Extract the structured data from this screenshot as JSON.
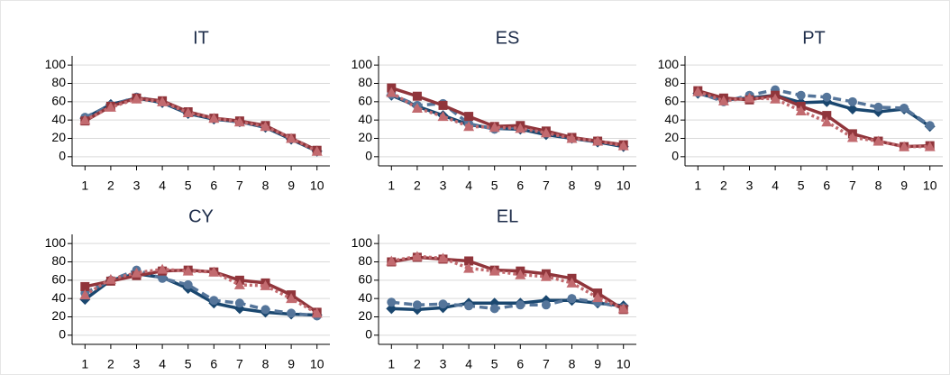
{
  "chart_data": [
    {
      "type": "line",
      "title": "IT",
      "x": [
        1,
        2,
        3,
        4,
        5,
        6,
        7,
        8,
        9,
        10
      ],
      "xlim": [
        0.5,
        10.5
      ],
      "xticks": [
        1,
        2,
        3,
        4,
        5,
        6,
        7,
        8,
        9,
        10
      ],
      "ylim": [
        -10,
        110
      ],
      "yticks": [
        0,
        20,
        40,
        60,
        80,
        100
      ],
      "grid": true,
      "series": [
        {
          "color": "#1a476f",
          "marker": "diamond",
          "dash": "solid",
          "values": [
            42,
            57,
            64,
            59,
            47,
            41,
            38,
            32,
            19,
            6
          ]
        },
        {
          "color": "#55759a",
          "marker": "circle",
          "dash": "dashed",
          "values": [
            43,
            56,
            65,
            60,
            48,
            42,
            38,
            33,
            20,
            7
          ]
        },
        {
          "color": "#90353b",
          "marker": "square",
          "dash": "solid",
          "values": [
            39,
            55,
            64,
            61,
            49,
            42,
            39,
            34,
            20,
            7
          ]
        },
        {
          "color": "#c26a6f",
          "marker": "triangle",
          "dash": "dotted",
          "values": [
            40,
            54,
            63,
            60,
            48,
            42,
            38,
            33,
            20,
            6
          ]
        }
      ]
    },
    {
      "type": "line",
      "title": "ES",
      "x": [
        1,
        2,
        3,
        4,
        5,
        6,
        7,
        8,
        9,
        10
      ],
      "xlim": [
        0.5,
        10.5
      ],
      "xticks": [
        1,
        2,
        3,
        4,
        5,
        6,
        7,
        8,
        9,
        10
      ],
      "ylim": [
        -10,
        110
      ],
      "yticks": [
        0,
        20,
        40,
        60,
        80,
        100
      ],
      "grid": true,
      "series": [
        {
          "color": "#1a476f",
          "marker": "diamond",
          "dash": "solid",
          "values": [
            67,
            55,
            45,
            35,
            31,
            30,
            24,
            20,
            16,
            11
          ]
        },
        {
          "color": "#55759a",
          "marker": "circle",
          "dash": "dashed",
          "values": [
            68,
            56,
            58,
            36,
            30,
            33,
            27,
            20,
            17,
            12
          ]
        },
        {
          "color": "#90353b",
          "marker": "square",
          "dash": "solid",
          "values": [
            75,
            66,
            56,
            44,
            33,
            34,
            28,
            21,
            17,
            13
          ]
        },
        {
          "color": "#c26a6f",
          "marker": "triangle",
          "dash": "dotted",
          "values": [
            70,
            53,
            44,
            33,
            32,
            31,
            26,
            20,
            17,
            12
          ]
        }
      ]
    },
    {
      "type": "line",
      "title": "PT",
      "x": [
        1,
        2,
        3,
        4,
        5,
        6,
        7,
        8,
        9,
        10
      ],
      "xlim": [
        0.5,
        10.5
      ],
      "xticks": [
        1,
        2,
        3,
        4,
        5,
        6,
        7,
        8,
        9,
        10
      ],
      "ylim": [
        -10,
        110
      ],
      "yticks": [
        0,
        20,
        40,
        60,
        80,
        100
      ],
      "grid": true,
      "series": [
        {
          "color": "#1a476f",
          "marker": "diamond",
          "dash": "solid",
          "values": [
            69,
            62,
            64,
            67,
            59,
            60,
            52,
            49,
            52,
            33
          ]
        },
        {
          "color": "#55759a",
          "marker": "circle",
          "dash": "dashed",
          "values": [
            70,
            60,
            67,
            73,
            67,
            65,
            60,
            54,
            53,
            34
          ]
        },
        {
          "color": "#90353b",
          "marker": "square",
          "dash": "solid",
          "values": [
            72,
            64,
            62,
            67,
            55,
            45,
            25,
            17,
            11,
            12
          ]
        },
        {
          "color": "#c26a6f",
          "marker": "triangle",
          "dash": "dotted",
          "values": [
            71,
            61,
            64,
            63,
            50,
            38,
            21,
            17,
            11,
            11
          ]
        }
      ]
    },
    {
      "type": "line",
      "title": "CY",
      "x": [
        1,
        2,
        3,
        4,
        5,
        6,
        7,
        8,
        9,
        10
      ],
      "xlim": [
        0.5,
        10.5
      ],
      "xticks": [
        1,
        2,
        3,
        4,
        5,
        6,
        7,
        8,
        9,
        10
      ],
      "ylim": [
        -10,
        110
      ],
      "yticks": [
        0,
        20,
        40,
        60,
        80,
        100
      ],
      "grid": true,
      "series": [
        {
          "color": "#1a476f",
          "marker": "diamond",
          "dash": "solid",
          "values": [
            39,
            60,
            67,
            63,
            51,
            35,
            29,
            25,
            23,
            22
          ]
        },
        {
          "color": "#55759a",
          "marker": "circle",
          "dash": "dashed",
          "values": [
            46,
            60,
            71,
            62,
            55,
            38,
            35,
            28,
            24,
            21
          ]
        },
        {
          "color": "#90353b",
          "marker": "square",
          "dash": "solid",
          "values": [
            53,
            59,
            65,
            70,
            71,
            69,
            60,
            57,
            44,
            25
          ]
        },
        {
          "color": "#c26a6f",
          "marker": "triangle",
          "dash": "dotted",
          "values": [
            44,
            61,
            68,
            72,
            70,
            69,
            55,
            54,
            40,
            24
          ]
        }
      ]
    },
    {
      "type": "line",
      "title": "EL",
      "x": [
        1,
        2,
        3,
        4,
        5,
        6,
        7,
        8,
        9,
        10
      ],
      "xlim": [
        0.5,
        10.5
      ],
      "xticks": [
        1,
        2,
        3,
        4,
        5,
        6,
        7,
        8,
        9,
        10
      ],
      "ylim": [
        -10,
        110
      ],
      "yticks": [
        0,
        20,
        40,
        60,
        80,
        100
      ],
      "grid": true,
      "series": [
        {
          "color": "#1a476f",
          "marker": "diamond",
          "dash": "solid",
          "values": [
            29,
            28,
            30,
            35,
            35,
            35,
            38,
            38,
            35,
            32
          ]
        },
        {
          "color": "#55759a",
          "marker": "circle",
          "dash": "dashed",
          "values": [
            36,
            33,
            34,
            32,
            29,
            33,
            33,
            40,
            36,
            30
          ]
        },
        {
          "color": "#90353b",
          "marker": "square",
          "dash": "solid",
          "values": [
            80,
            85,
            83,
            81,
            71,
            70,
            67,
            62,
            46,
            28
          ]
        },
        {
          "color": "#c26a6f",
          "marker": "triangle",
          "dash": "dotted",
          "values": [
            81,
            86,
            84,
            73,
            70,
            66,
            64,
            57,
            41,
            29
          ]
        }
      ]
    }
  ]
}
